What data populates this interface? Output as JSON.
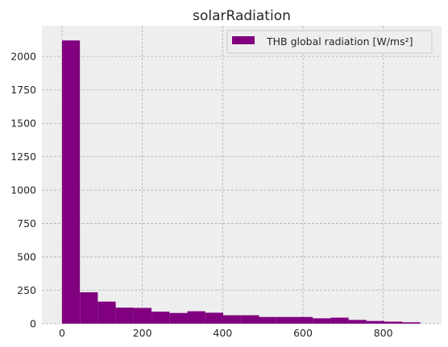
{
  "chart_data": {
    "type": "bar",
    "title": "solarRadiation",
    "xlabel": "",
    "ylabel": "",
    "xlim": [
      -50,
      945
    ],
    "ylim": [
      0,
      2230
    ],
    "xticks": [
      0,
      200,
      400,
      600,
      800
    ],
    "yticks": [
      0,
      250,
      500,
      750,
      1000,
      1250,
      1500,
      1750,
      2000
    ],
    "grid": true,
    "legend_placement": "top-right",
    "bin_edges": [
      0,
      44.6,
      89.2,
      133.8,
      178.4,
      223.0,
      267.6,
      312.2,
      356.8,
      401.4,
      446.0,
      490.6,
      535.2,
      579.8,
      624.4,
      669.0,
      713.6,
      758.2,
      802.8,
      847.4,
      892.0
    ],
    "series": [
      {
        "name": "THB global radiation [W/ms²]",
        "color": "#800080",
        "values": [
          2120,
          235,
          165,
          120,
          118,
          90,
          80,
          93,
          82,
          63,
          63,
          50,
          50,
          50,
          40,
          45,
          28,
          20,
          15,
          10
        ]
      }
    ]
  }
}
